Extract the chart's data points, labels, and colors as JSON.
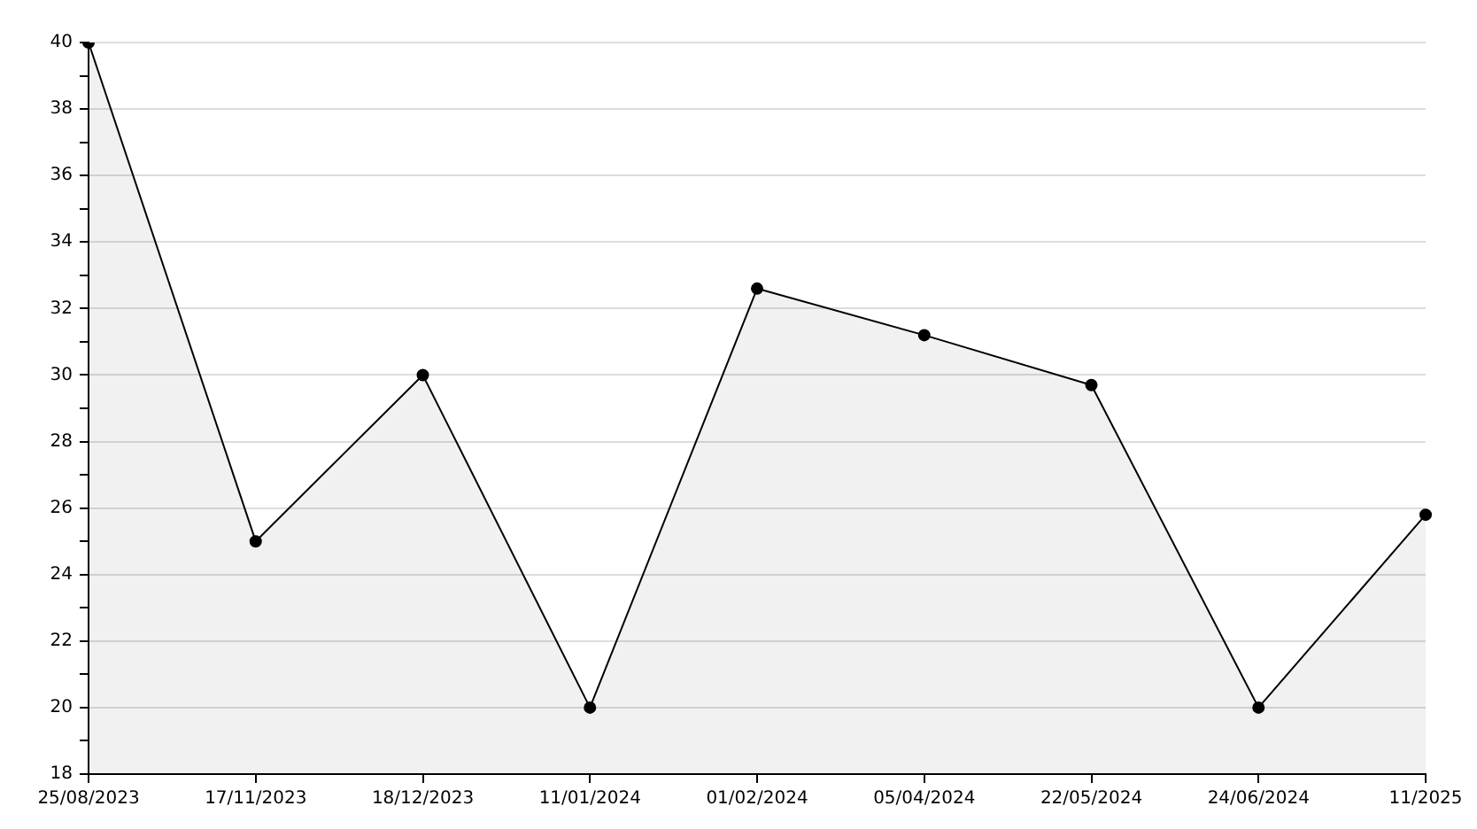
{
  "chart_data": {
    "type": "area",
    "categories": [
      "25/08/2023",
      "17/11/2023",
      "18/12/2023",
      "11/01/2024",
      "01/02/2024",
      "05/04/2024",
      "22/05/2024",
      "24/06/2024",
      "11/2025"
    ],
    "series": [
      {
        "color": "#000000",
        "values": [
          40,
          25,
          30,
          20,
          32.6,
          31.2,
          29.7,
          20,
          25.8
        ]
      }
    ],
    "ylim": [
      18,
      40
    ],
    "yticks": [
      18,
      {
        "value": 19,
        "label": null
      },
      20,
      {
        "value": 21,
        "label": null
      },
      22,
      {
        "value": 23,
        "label": null
      },
      24,
      {
        "value": 25,
        "label": null
      },
      26,
      {
        "value": 27,
        "label": null
      },
      28,
      {
        "value": 29,
        "label": null
      },
      30,
      {
        "value": 31,
        "label": null
      },
      32,
      {
        "value": 33,
        "label": null
      },
      34,
      {
        "value": 35,
        "label": null
      },
      36,
      {
        "value": 37,
        "label": null
      },
      38,
      {
        "value": 39,
        "label": null
      },
      40
    ],
    "grid": "y",
    "legend": false,
    "marker": "circle"
  }
}
